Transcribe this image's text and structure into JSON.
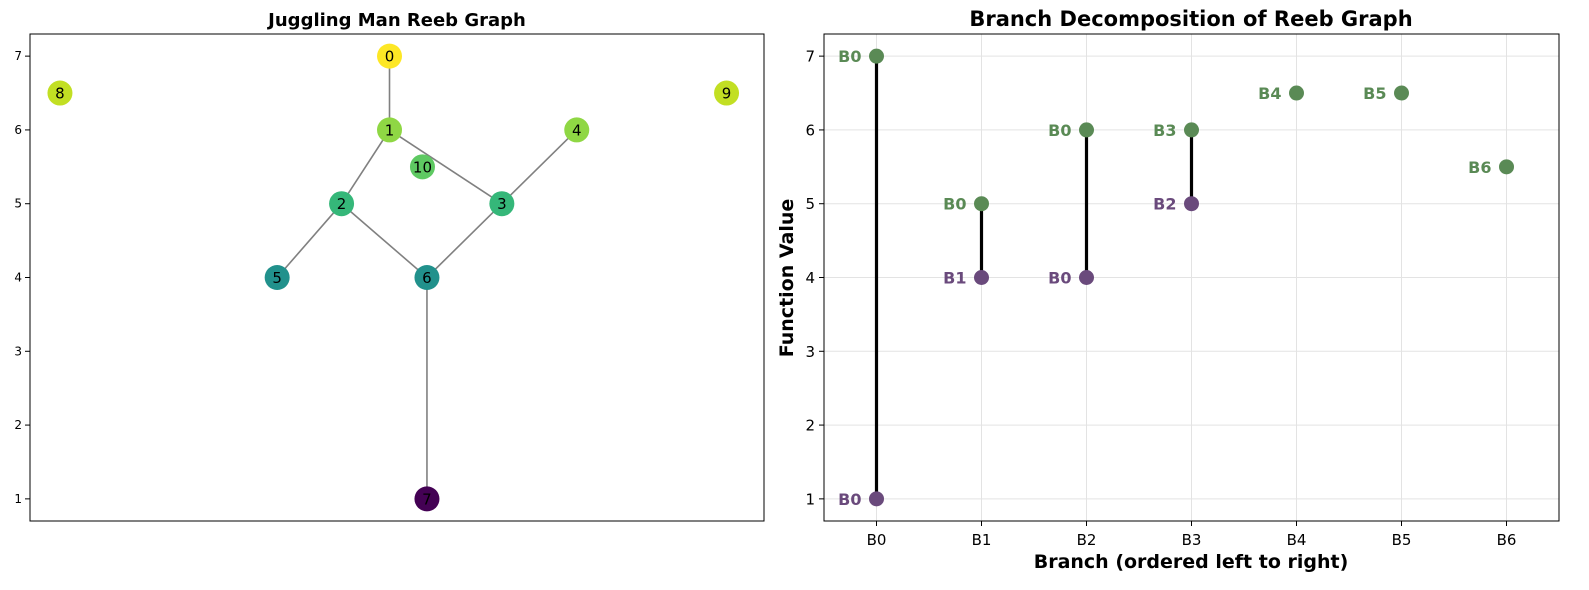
{
  "colors": {
    "edge": "#808080",
    "branch_line": "#000000",
    "max_point": "#5a8a55",
    "min_point": "#6a4a7c",
    "grid": "#e3e3e3"
  },
  "chart_data": [
    {
      "type": "graph",
      "title": "Juggling Man Reeb Graph",
      "xlim": [
        -1.65,
        3.25
      ],
      "ylim": [
        0.7,
        7.3
      ],
      "yticks": [
        1,
        2,
        3,
        4,
        5,
        6,
        7
      ],
      "x_ticks_visible": false,
      "grid": false,
      "colormap": "viridis",
      "nodes": [
        {
          "id": "0",
          "x": 0.75,
          "y": 7.0,
          "value": 7.0,
          "color": "#fde725"
        },
        {
          "id": "1",
          "x": 0.75,
          "y": 6.0,
          "value": 6.0,
          "color": "#8fd744"
        },
        {
          "id": "2",
          "x": 0.43,
          "y": 5.0,
          "value": 5.0,
          "color": "#35b779"
        },
        {
          "id": "3",
          "x": 1.5,
          "y": 5.0,
          "value": 5.0,
          "color": "#35b779"
        },
        {
          "id": "4",
          "x": 2.0,
          "y": 6.0,
          "value": 6.0,
          "color": "#8fd744"
        },
        {
          "id": "5",
          "x": 0.0,
          "y": 4.0,
          "value": 4.0,
          "color": "#21918c"
        },
        {
          "id": "6",
          "x": 1.0,
          "y": 4.0,
          "value": 4.0,
          "color": "#21918c"
        },
        {
          "id": "7",
          "x": 1.0,
          "y": 1.0,
          "value": 1.0,
          "color": "#440154"
        },
        {
          "id": "8",
          "x": -1.45,
          "y": 6.5,
          "value": 6.5,
          "color": "#c2df23"
        },
        {
          "id": "9",
          "x": 3.0,
          "y": 6.5,
          "value": 6.5,
          "color": "#c2df23"
        },
        {
          "id": "10",
          "x": 0.97,
          "y": 5.5,
          "value": 5.5,
          "color": "#5ec962"
        }
      ],
      "edges": [
        [
          "0",
          "1"
        ],
        [
          "1",
          "2"
        ],
        [
          "1",
          "3"
        ],
        [
          "2",
          "5"
        ],
        [
          "2",
          "6"
        ],
        [
          "3",
          "4"
        ],
        [
          "3",
          "6"
        ],
        [
          "6",
          "7"
        ]
      ]
    },
    {
      "type": "scatter",
      "title": "Branch Decomposition of Reeb Graph",
      "xlabel": "Branch (ordered left to right)",
      "ylabel": "Function Value",
      "categories": [
        "B0",
        "B1",
        "B2",
        "B3",
        "B4",
        "B5",
        "B6"
      ],
      "xlim": [
        -0.5,
        6.5
      ],
      "ylim": [
        0.7,
        7.3
      ],
      "yticks": [
        1,
        2,
        3,
        4,
        5,
        6,
        7
      ],
      "grid": true,
      "branches": [
        {
          "x": "B0",
          "max": 7,
          "min": 1,
          "max_label": "B0",
          "min_label": "B0"
        },
        {
          "x": "B1",
          "max": 5,
          "min": 4,
          "max_label": "B0",
          "min_label": "B1"
        },
        {
          "x": "B2",
          "max": 6,
          "min": 4,
          "max_label": "B0",
          "min_label": "B0"
        },
        {
          "x": "B3",
          "max": 6,
          "min": 5,
          "max_label": "B3",
          "min_label": "B2"
        },
        {
          "x": "B4",
          "max": 6.5,
          "min": null,
          "max_label": "B4",
          "min_label": null
        },
        {
          "x": "B5",
          "max": 6.5,
          "min": null,
          "max_label": "B5",
          "min_label": null
        },
        {
          "x": "B6",
          "max": 5.5,
          "min": null,
          "max_label": "B6",
          "min_label": null
        }
      ]
    }
  ]
}
